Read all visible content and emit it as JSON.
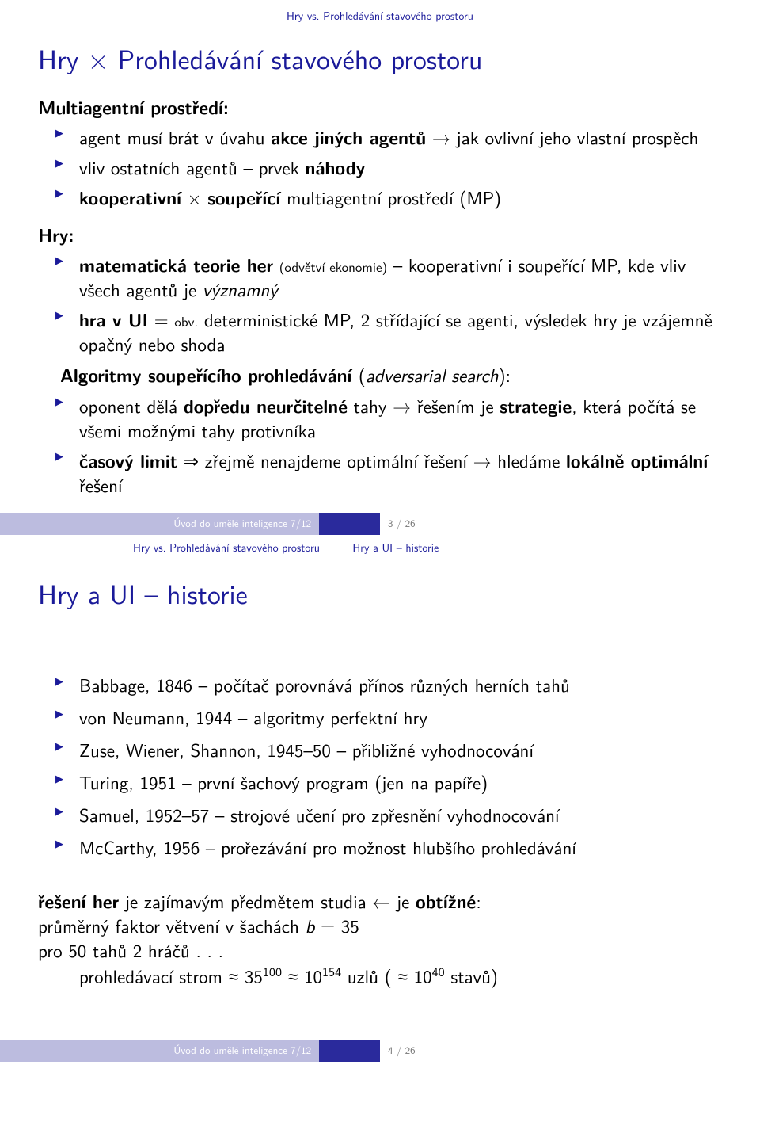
{
  "slide1": {
    "crumb": "Hry vs. Prohledávání stavového prostoru",
    "title": "Hry × Prohledávání stavového prostoru",
    "multi_heading": "Multiagentní prostředí:",
    "multi_items": [
      "agent musí brát v úvahu <span class=\"bold\">akce jiných agentů</span> → jak ovlivní jeho vlastní prospěch",
      "vliv ostatních agentů – prvek <span class=\"bold\">náhody</span>",
      "<span class=\"bold\">kooperativní</span> × <span class=\"bold\">soupeřící</span> multiagentní prostředí (MP)"
    ],
    "hry_heading": "Hry:",
    "hry_items": [
      "<span class=\"bold\">matematická teorie her</span> <span class=\"smalltxt\">(odvětví ekonomie)</span> – kooperativní i soupeřící MP, kde vliv všech agentů je <span class=\"italic\">významný</span>",
      "<span class=\"bold\">hra v UI</span> = <span class=\"smalltxt\">obv.</span> deterministické MP, 2 střídající se agenti, výsledek hry je vzájemně opačný nebo shoda"
    ],
    "algo_head": "Algoritmy soupeřícího prohledávání <span style=\"font-weight:400\">(<span class=\"italic\">adversarial search</span>):</span>",
    "algo_items": [
      "oponent dělá <span class=\"bold\">dopředu neurčitelné</span> tahy → řešením je <span class=\"bold\">strategie</span>, která počítá se všemi možnými tahy protivníka",
      "<span class=\"bold\">časový limit</span> ⇒ zřejmě nenajdeme optimální řešení → hledáme <span class=\"bold\">lokálně optimální</span> řešení"
    ],
    "footer_left": "Úvod do umělé inteligence 7/12",
    "footer_right": "3 / 26",
    "crumb2_left": "Hry vs. Prohledávání stavového prostoru",
    "crumb2_right": "Hry a UI – historie"
  },
  "slide2": {
    "title": "Hry a UI – historie",
    "items": [
      "Babbage, 1846 – počítač porovnává přínos různých herních tahů",
      "von Neumann, 1944 – algoritmy perfektní hry",
      "Zuse, Wiener, Shannon, 1945–50 – přibližné vyhodnocování",
      "Turing, 1951 – první šachový program (jen na papíře)",
      "Samuel, 1952–57 – strojové učení pro zpřesnění vyhodnocování",
      "McCarthy, 1956 – prořezávání pro možnost hlubšího prohledávání"
    ],
    "bottom1": "<span class=\"bold\">řešení her</span> je zajímavým předmětem studia ← je <span class=\"bold\">obtížné</span>:",
    "bottom2": "průměrný faktor větvení v šachách <span class=\"italic\">b</span> = 35",
    "bottom3": "pro 50 tahů 2 hráčů . . .",
    "bottom4": "prohledávací strom ≈ 35<sup>100</sup> ≈ 10<sup>154</sup> uzlů ( ≈ 10<sup>40</sup> stavů)",
    "footer_left": "Úvod do umělé inteligence 7/12",
    "footer_right": "4 / 26"
  }
}
